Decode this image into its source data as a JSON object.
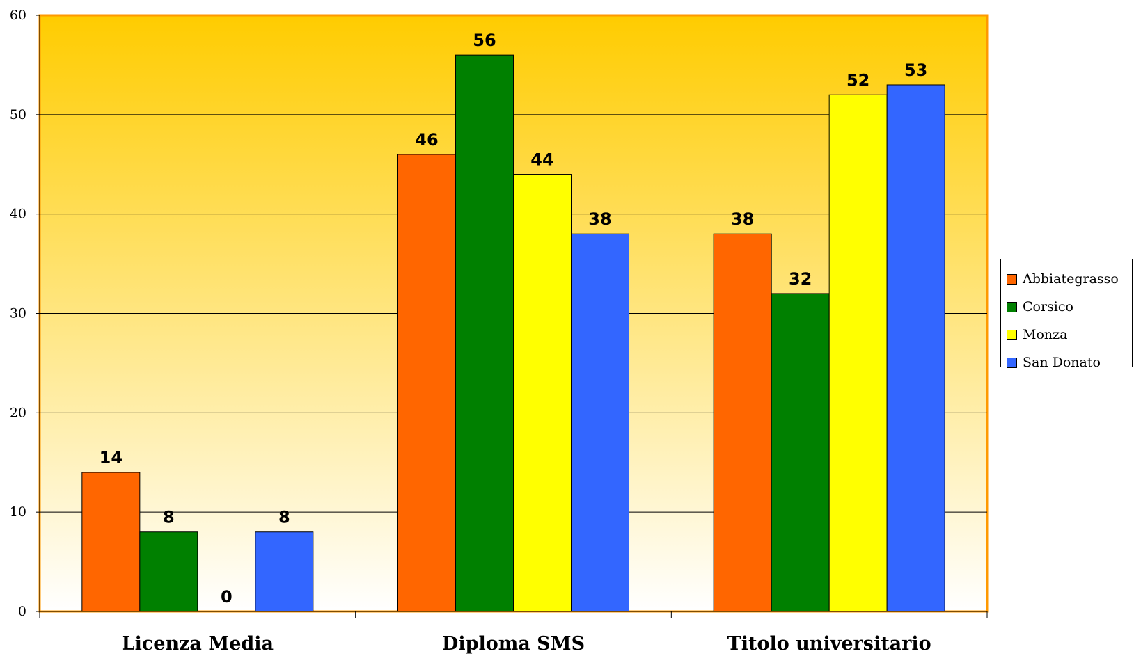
{
  "chart_data": {
    "type": "bar",
    "categories": [
      "Licenza Media",
      "Diploma SMS",
      "Titolo universitario"
    ],
    "series": [
      {
        "name": "Abbiategrasso",
        "color": "#ff6600",
        "values": [
          14,
          46,
          38
        ]
      },
      {
        "name": "Corsico",
        "color": "#008000",
        "values": [
          8,
          56,
          32
        ]
      },
      {
        "name": "Monza",
        "color": "#ffff00",
        "values": [
          0,
          44,
          52
        ]
      },
      {
        "name": "San Donato",
        "color": "#3366ff",
        "values": [
          8,
          38,
          53
        ]
      }
    ],
    "ylim": [
      0,
      60
    ],
    "yticks": [
      "0",
      "10",
      "20",
      "30",
      "40",
      "50",
      "60"
    ],
    "grid": true,
    "legend_position": "right",
    "data_labels": true,
    "plot_background": {
      "top": "#ffcc00",
      "bottom": "#ffffff"
    },
    "plot_border_color": "#ff9900"
  }
}
